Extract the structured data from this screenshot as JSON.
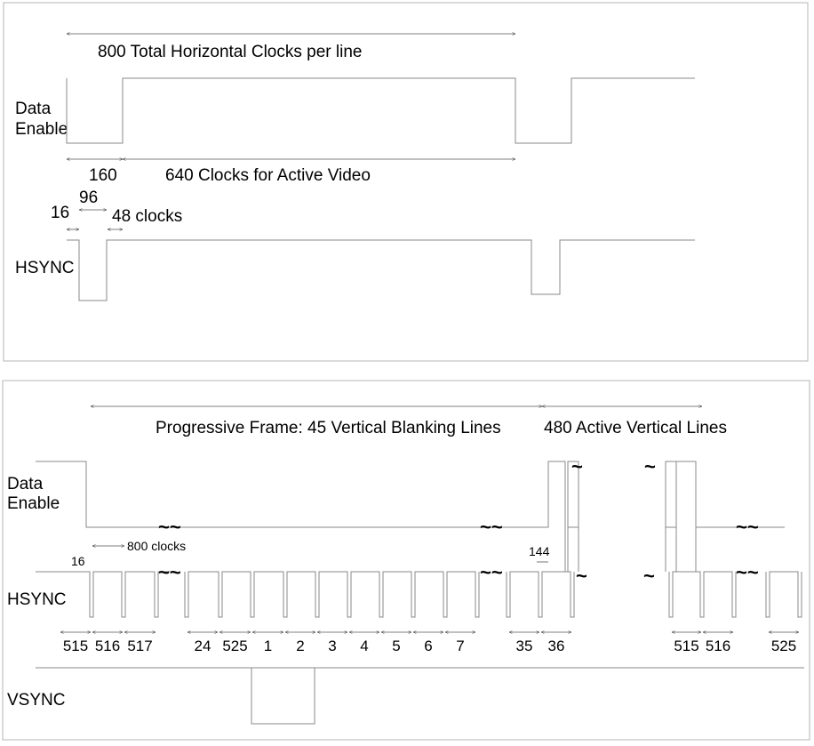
{
  "top": {
    "total_label": "800 Total Horizontal Clocks per line",
    "data_enable_label_1": "Data",
    "data_enable_label_2": "Enable",
    "blank_label": "160",
    "active_label": "640 Clocks for Active Video",
    "front_porch_label": "16",
    "sync_label": "96",
    "back_porch_label": "48 clocks",
    "hsync_label": "HSYNC"
  },
  "bottom": {
    "blanking_label": "Progressive Frame: 45 Vertical Blanking Lines",
    "active_label": "480 Active Vertical Lines",
    "data_enable_label_1": "Data",
    "data_enable_label_2": "Enable",
    "line_clocks_label": "800 clocks",
    "offset_16_label": "16",
    "offset_144_label": "144",
    "hsync_label": "HSYNC",
    "vsync_label": "VSYNC",
    "break_symbol": "~",
    "double_break_symbol": "~~",
    "line_numbers": [
      "515",
      "516",
      "517",
      "24",
      "525",
      "1",
      "2",
      "3",
      "4",
      "5",
      "6",
      "7",
      "35",
      "36",
      "515",
      "516",
      "525"
    ]
  }
}
